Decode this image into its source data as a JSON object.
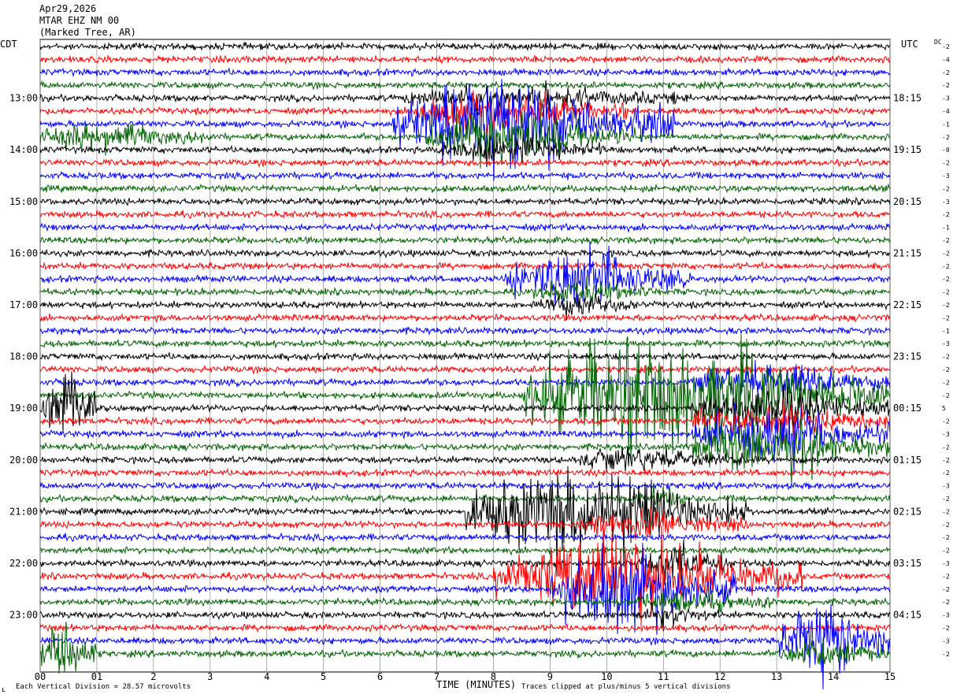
{
  "header": {
    "date": "Apr29,2026",
    "station": "MTAR EHZ NM 00",
    "location": "(Marked Tree, AR)"
  },
  "left_tz": "CDT",
  "right_tz": "UTC",
  "dc_label": "DC",
  "footer": {
    "left_symbol": "ʟ",
    "scale_note": "Each Vertical Division =   28.57 microvolts",
    "clip_note": "Traces clipped at plus/minus 5 vertical divisions"
  },
  "chart_data": {
    "type": "helicorder",
    "xlabel": "TIME (MINUTES)",
    "xlim": [
      0,
      15
    ],
    "x_ticks": [
      "00",
      "01",
      "2",
      "3",
      "4",
      "5",
      "6",
      "7",
      "8",
      "9",
      "10",
      "11",
      "12",
      "13",
      "14",
      "15"
    ],
    "trace_colors": [
      "#000000",
      "#ff0000",
      "#0000ff",
      "#006400"
    ],
    "grid": "vertical minute lines",
    "left_hour_labels": [
      "13:00",
      "14:00",
      "15:00",
      "16:00",
      "17:00",
      "18:00",
      "19:00",
      "20:00",
      "21:00",
      "22:00",
      "23:00"
    ],
    "right_hour_labels": [
      "18:15",
      "19:15",
      "20:15",
      "21:15",
      "22:15",
      "23:15",
      "00:15",
      "01:15",
      "02:15",
      "03:15",
      "04:15"
    ],
    "dc_offsets": [
      "-2",
      "-4",
      "-2",
      "-2",
      "-3",
      "-4",
      "-1",
      "-2",
      "-0",
      "-2",
      "-3",
      "-2",
      "-3",
      "-2",
      "-1",
      "-2",
      "-2",
      "-2",
      "-2",
      "-2",
      "-2",
      "-2",
      "-1",
      "-3",
      "-2",
      "-2",
      "-2",
      "-2",
      "5",
      "-2",
      "-3",
      "-2",
      "-2",
      "-2",
      "-3",
      "-2",
      "-2",
      "-2",
      "-2",
      "-2",
      "-3",
      "-2",
      "-2",
      "-2",
      "-3",
      "-2",
      "-3",
      "-2"
    ],
    "events": [
      {
        "row": 4,
        "start_min": 6.4,
        "end_min": 11.5,
        "amp": 0.6
      },
      {
        "row": 5,
        "start_min": 6.6,
        "end_min": 10.4,
        "amp": 1.0
      },
      {
        "row": 6,
        "start_min": 6.2,
        "end_min": 11.2,
        "amp": 2.6
      },
      {
        "row": 7,
        "start_min": 0.0,
        "end_min": 3.0,
        "amp": 0.7
      },
      {
        "row": 7,
        "start_min": 6.8,
        "end_min": 10.5,
        "amp": 1.4
      },
      {
        "row": 8,
        "start_min": 7.0,
        "end_min": 10.0,
        "amp": 0.7
      },
      {
        "row": 18,
        "start_min": 8.2,
        "end_min": 11.5,
        "amp": 1.8
      },
      {
        "row": 19,
        "start_min": 8.7,
        "end_min": 10.8,
        "amp": 0.6
      },
      {
        "row": 20,
        "start_min": 8.8,
        "end_min": 10.5,
        "amp": 0.6
      },
      {
        "row": 26,
        "start_min": 11.5,
        "end_min": 15.0,
        "amp": 1.0
      },
      {
        "row": 27,
        "start_min": 8.5,
        "end_min": 15.0,
        "amp": 3.5
      },
      {
        "row": 28,
        "start_min": 0.0,
        "end_min": 1.0,
        "amp": 2.5
      },
      {
        "row": 28,
        "start_min": 11.5,
        "end_min": 15.0,
        "amp": 1.0
      },
      {
        "row": 29,
        "start_min": 11.5,
        "end_min": 15.0,
        "amp": 1.0
      },
      {
        "row": 30,
        "start_min": 11.5,
        "end_min": 15.0,
        "amp": 1.6
      },
      {
        "row": 31,
        "start_min": 11.5,
        "end_min": 15.0,
        "amp": 1.4
      },
      {
        "row": 32,
        "start_min": 9.5,
        "end_min": 12.5,
        "amp": 0.6
      },
      {
        "row": 35,
        "start_min": 10.5,
        "end_min": 11.5,
        "amp": 0.7
      },
      {
        "row": 36,
        "start_min": 7.5,
        "end_min": 12.5,
        "amp": 2.4
      },
      {
        "row": 37,
        "start_min": 9.5,
        "end_min": 12.5,
        "amp": 0.7
      },
      {
        "row": 40,
        "start_min": 10.5,
        "end_min": 12.2,
        "amp": 1.2
      },
      {
        "row": 41,
        "start_min": 8.0,
        "end_min": 13.5,
        "amp": 2.6
      },
      {
        "row": 42,
        "start_min": 9.0,
        "end_min": 12.3,
        "amp": 2.4
      },
      {
        "row": 43,
        "start_min": 10.5,
        "end_min": 13.0,
        "amp": 0.6
      },
      {
        "row": 44,
        "start_min": 10.5,
        "end_min": 12.0,
        "amp": 0.5
      },
      {
        "row": 46,
        "start_min": 13.0,
        "end_min": 15.0,
        "amp": 2.2
      },
      {
        "row": 47,
        "start_min": 0.0,
        "end_min": 1.0,
        "amp": 2.0
      },
      {
        "row": 47,
        "start_min": 13.0,
        "end_min": 15.0,
        "amp": 0.7
      }
    ]
  }
}
